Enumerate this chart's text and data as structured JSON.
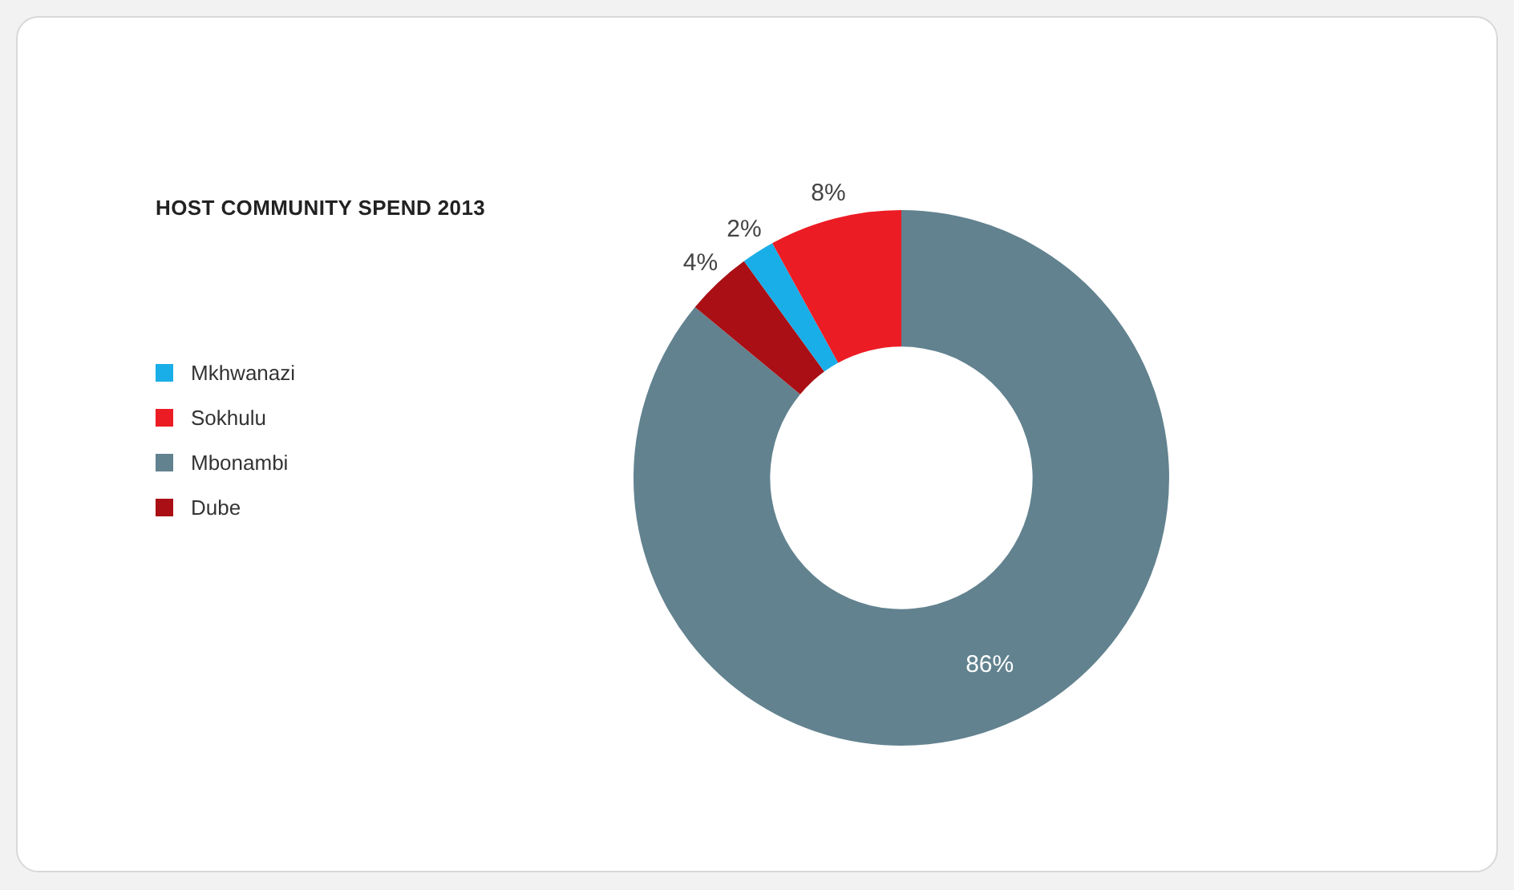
{
  "chart_data": {
    "type": "donut",
    "title": "HOST COMMUNITY SPEND 2013",
    "categories": [
      "Mkhwanazi",
      "Sokhulu",
      "Mbonambi",
      "Dube"
    ],
    "values": [
      2,
      8,
      86,
      4
    ],
    "colors": [
      "#1aaee8",
      "#ec1c24",
      "#62828f",
      "#a90f14"
    ],
    "value_labels": [
      "2%",
      "8%",
      "86%",
      "4%"
    ],
    "legend": "left"
  }
}
